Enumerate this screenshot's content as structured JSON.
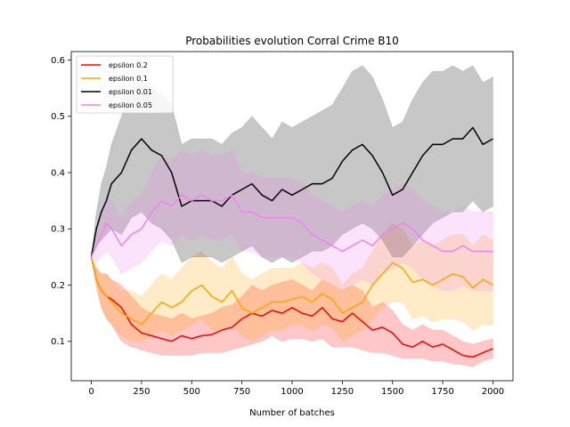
{
  "chart_data": {
    "type": "line",
    "title": "Probabilities evolution Corral Crime B10",
    "xlabel": "Number of batches",
    "ylabel": "",
    "xlim": [
      -100,
      2100
    ],
    "ylim": [
      0.03,
      0.615
    ],
    "xticks": [
      0,
      250,
      500,
      750,
      1000,
      1250,
      1500,
      1750,
      2000
    ],
    "yticks": [
      0.1,
      0.2,
      0.3,
      0.4,
      0.5,
      0.6
    ],
    "ytick_labels": [
      "0.1",
      "0.2",
      "0.3",
      "0.4",
      "0.5",
      "0.6"
    ],
    "legend_position": "upper-left",
    "grid": false,
    "series": [
      {
        "name": "epsilon 0.2",
        "color": "#ff0000",
        "x": [
          0,
          25,
          50,
          75,
          100,
          150,
          200,
          250,
          300,
          350,
          400,
          450,
          500,
          550,
          600,
          650,
          700,
          750,
          800,
          850,
          900,
          950,
          1000,
          1050,
          1100,
          1150,
          1200,
          1250,
          1300,
          1350,
          1400,
          1450,
          1500,
          1550,
          1600,
          1650,
          1700,
          1750,
          1800,
          1850,
          1900,
          1950,
          2000
        ],
        "y": [
          0.25,
          0.21,
          0.19,
          0.18,
          0.175,
          0.16,
          0.13,
          0.115,
          0.11,
          0.105,
          0.1,
          0.11,
          0.105,
          0.11,
          0.112,
          0.12,
          0.125,
          0.14,
          0.15,
          0.145,
          0.155,
          0.15,
          0.16,
          0.15,
          0.145,
          0.16,
          0.14,
          0.135,
          0.15,
          0.135,
          0.12,
          0.125,
          0.115,
          0.095,
          0.09,
          0.1,
          0.09,
          0.095,
          0.085,
          0.075,
          0.072,
          0.08,
          0.087
        ],
        "band_low": [
          0.25,
          0.2,
          0.16,
          0.14,
          0.13,
          0.1,
          0.09,
          0.085,
          0.08,
          0.075,
          0.075,
          0.075,
          0.075,
          0.08,
          0.08,
          0.08,
          0.085,
          0.09,
          0.095,
          0.1,
          0.11,
          0.1,
          0.105,
          0.105,
          0.1,
          0.105,
          0.09,
          0.09,
          0.09,
          0.085,
          0.08,
          0.08,
          0.075,
          0.07,
          0.07,
          0.07,
          0.065,
          0.065,
          0.06,
          0.058,
          0.055,
          0.065,
          0.07
        ],
        "band_high": [
          0.25,
          0.23,
          0.22,
          0.22,
          0.21,
          0.2,
          0.18,
          0.16,
          0.15,
          0.145,
          0.14,
          0.15,
          0.14,
          0.145,
          0.15,
          0.16,
          0.165,
          0.18,
          0.2,
          0.19,
          0.2,
          0.205,
          0.21,
          0.2,
          0.19,
          0.21,
          0.2,
          0.19,
          0.2,
          0.19,
          0.16,
          0.17,
          0.155,
          0.13,
          0.12,
          0.13,
          0.12,
          0.12,
          0.11,
          0.1,
          0.095,
          0.1,
          0.105
        ]
      },
      {
        "name": "epsilon 0.1",
        "color": "#ffa500",
        "x": [
          0,
          25,
          50,
          75,
          100,
          150,
          200,
          250,
          300,
          350,
          400,
          450,
          500,
          550,
          600,
          650,
          700,
          750,
          800,
          850,
          900,
          950,
          1000,
          1050,
          1100,
          1150,
          1200,
          1250,
          1300,
          1350,
          1400,
          1450,
          1500,
          1550,
          1600,
          1650,
          1700,
          1750,
          1800,
          1850,
          1900,
          1950,
          2000
        ],
        "y": [
          0.25,
          0.21,
          0.19,
          0.18,
          0.17,
          0.15,
          0.14,
          0.13,
          0.15,
          0.17,
          0.16,
          0.17,
          0.19,
          0.2,
          0.18,
          0.17,
          0.19,
          0.16,
          0.15,
          0.16,
          0.17,
          0.17,
          0.175,
          0.18,
          0.17,
          0.185,
          0.175,
          0.15,
          0.16,
          0.17,
          0.2,
          0.22,
          0.24,
          0.23,
          0.205,
          0.21,
          0.2,
          0.21,
          0.22,
          0.215,
          0.195,
          0.21,
          0.2
        ],
        "band_low": [
          0.25,
          0.19,
          0.16,
          0.14,
          0.13,
          0.11,
          0.1,
          0.1,
          0.11,
          0.12,
          0.11,
          0.12,
          0.13,
          0.14,
          0.12,
          0.12,
          0.13,
          0.11,
          0.1,
          0.11,
          0.12,
          0.12,
          0.13,
          0.13,
          0.12,
          0.13,
          0.125,
          0.1,
          0.11,
          0.12,
          0.14,
          0.16,
          0.17,
          0.17,
          0.14,
          0.145,
          0.135,
          0.14,
          0.14,
          0.135,
          0.12,
          0.13,
          0.13
        ],
        "band_high": [
          0.25,
          0.23,
          0.22,
          0.22,
          0.21,
          0.19,
          0.19,
          0.18,
          0.2,
          0.22,
          0.21,
          0.23,
          0.25,
          0.26,
          0.24,
          0.23,
          0.25,
          0.22,
          0.21,
          0.22,
          0.23,
          0.23,
          0.23,
          0.24,
          0.23,
          0.24,
          0.23,
          0.2,
          0.22,
          0.23,
          0.26,
          0.29,
          0.31,
          0.3,
          0.27,
          0.28,
          0.27,
          0.28,
          0.29,
          0.29,
          0.27,
          0.29,
          0.28
        ]
      },
      {
        "name": "epsilon 0.01",
        "color": "#000000",
        "x": [
          0,
          25,
          50,
          75,
          100,
          150,
          200,
          250,
          300,
          350,
          400,
          450,
          500,
          550,
          600,
          650,
          700,
          750,
          800,
          850,
          900,
          950,
          1000,
          1050,
          1100,
          1150,
          1200,
          1250,
          1300,
          1350,
          1400,
          1450,
          1500,
          1550,
          1600,
          1650,
          1700,
          1750,
          1800,
          1850,
          1900,
          1950,
          2000
        ],
        "y": [
          0.25,
          0.3,
          0.33,
          0.35,
          0.38,
          0.4,
          0.44,
          0.46,
          0.44,
          0.43,
          0.4,
          0.34,
          0.35,
          0.35,
          0.35,
          0.34,
          0.36,
          0.37,
          0.38,
          0.36,
          0.35,
          0.37,
          0.36,
          0.37,
          0.38,
          0.38,
          0.39,
          0.42,
          0.44,
          0.45,
          0.43,
          0.4,
          0.36,
          0.37,
          0.4,
          0.43,
          0.45,
          0.45,
          0.46,
          0.46,
          0.48,
          0.45,
          0.46
        ],
        "band_low": [
          0.25,
          0.27,
          0.28,
          0.29,
          0.3,
          0.29,
          0.32,
          0.33,
          0.31,
          0.3,
          0.28,
          0.24,
          0.25,
          0.25,
          0.25,
          0.24,
          0.25,
          0.26,
          0.27,
          0.25,
          0.24,
          0.25,
          0.24,
          0.25,
          0.26,
          0.26,
          0.27,
          0.29,
          0.3,
          0.31,
          0.3,
          0.28,
          0.25,
          0.25,
          0.27,
          0.29,
          0.31,
          0.32,
          0.33,
          0.33,
          0.35,
          0.33,
          0.34
        ],
        "band_high": [
          0.25,
          0.33,
          0.38,
          0.41,
          0.45,
          0.5,
          0.55,
          0.56,
          0.55,
          0.54,
          0.52,
          0.45,
          0.46,
          0.46,
          0.46,
          0.45,
          0.47,
          0.48,
          0.5,
          0.48,
          0.46,
          0.49,
          0.48,
          0.49,
          0.5,
          0.51,
          0.52,
          0.55,
          0.58,
          0.59,
          0.57,
          0.53,
          0.48,
          0.49,
          0.53,
          0.56,
          0.58,
          0.58,
          0.59,
          0.58,
          0.59,
          0.56,
          0.57
        ]
      },
      {
        "name": "epsilon 0.05",
        "color": "#ee82ee",
        "x": [
          0,
          25,
          50,
          75,
          100,
          150,
          200,
          250,
          300,
          350,
          400,
          450,
          500,
          550,
          600,
          650,
          700,
          750,
          800,
          850,
          900,
          950,
          1000,
          1050,
          1100,
          1150,
          1200,
          1250,
          1300,
          1350,
          1400,
          1450,
          1500,
          1550,
          1600,
          1650,
          1700,
          1750,
          1800,
          1850,
          1900,
          1950,
          2000
        ],
        "y": [
          0.25,
          0.27,
          0.29,
          0.31,
          0.3,
          0.27,
          0.29,
          0.3,
          0.33,
          0.35,
          0.34,
          0.36,
          0.35,
          0.36,
          0.35,
          0.35,
          0.36,
          0.33,
          0.33,
          0.32,
          0.32,
          0.32,
          0.32,
          0.31,
          0.29,
          0.28,
          0.27,
          0.26,
          0.27,
          0.28,
          0.27,
          0.29,
          0.3,
          0.31,
          0.3,
          0.28,
          0.27,
          0.26,
          0.26,
          0.27,
          0.26,
          0.26,
          0.26
        ],
        "band_low": [
          0.25,
          0.24,
          0.25,
          0.26,
          0.25,
          0.22,
          0.23,
          0.24,
          0.26,
          0.28,
          0.27,
          0.29,
          0.28,
          0.29,
          0.28,
          0.28,
          0.29,
          0.26,
          0.26,
          0.25,
          0.25,
          0.25,
          0.25,
          0.24,
          0.22,
          0.21,
          0.2,
          0.19,
          0.2,
          0.21,
          0.2,
          0.22,
          0.23,
          0.24,
          0.23,
          0.21,
          0.2,
          0.19,
          0.19,
          0.2,
          0.19,
          0.19,
          0.19
        ],
        "band_high": [
          0.25,
          0.3,
          0.33,
          0.36,
          0.35,
          0.32,
          0.35,
          0.36,
          0.4,
          0.43,
          0.42,
          0.44,
          0.43,
          0.44,
          0.43,
          0.43,
          0.44,
          0.4,
          0.4,
          0.39,
          0.39,
          0.39,
          0.39,
          0.38,
          0.36,
          0.35,
          0.34,
          0.33,
          0.34,
          0.35,
          0.34,
          0.36,
          0.37,
          0.38,
          0.37,
          0.35,
          0.34,
          0.33,
          0.33,
          0.34,
          0.33,
          0.33,
          0.33
        ]
      }
    ]
  }
}
